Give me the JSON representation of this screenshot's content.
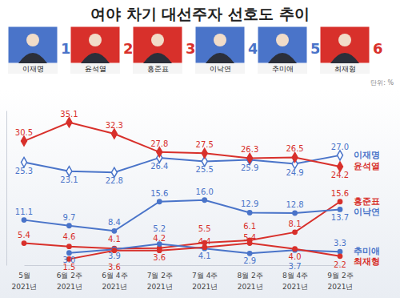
{
  "chart_data": {
    "type": "line",
    "title": "여야 차기 대선주자 선호도 추이",
    "unit_label": "단위: %",
    "categories": [
      "5월 2021년",
      "6월 2주 2021년",
      "6월 4주 2021년",
      "7월 2주 2021년",
      "7월 4주 2021년",
      "8월 2주 2021년",
      "8월 4주 2021년",
      "9월 2주 2021년"
    ],
    "series": [
      {
        "name": "이재명",
        "number": 1,
        "color": "#4a74c9",
        "marker": "diamond-open",
        "values": [
          25.3,
          23.1,
          22.8,
          26.4,
          25.5,
          25.9,
          24.9,
          27.0
        ],
        "value_labels": [
          "25.3",
          "23.1",
          "22.8",
          "26.4",
          "25.5",
          "25.9",
          "24.9",
          "27.0"
        ]
      },
      {
        "name": "윤석열",
        "number": 2,
        "color": "#d8302b",
        "marker": "diamond",
        "values": [
          30.5,
          35.1,
          32.3,
          27.8,
          27.5,
          26.3,
          26.5,
          24.2
        ],
        "value_labels": [
          "30.5",
          "35.1",
          "32.3",
          "27.8",
          "27.5",
          "26.3",
          "26.5",
          "24.2"
        ]
      },
      {
        "name": "홍준표",
        "number": 3,
        "color": "#d8302b",
        "marker": "circle",
        "values": [
          5.4,
          4.6,
          4.1,
          4.2,
          5.5,
          6.1,
          8.1,
          15.6
        ],
        "value_labels": [
          "5.4",
          "4.6",
          "4.1",
          "4.2",
          "5.5",
          "6.1",
          "8.1",
          "15.6"
        ]
      },
      {
        "name": "이낙연",
        "number": 4,
        "color": "#4a74c9",
        "marker": "circle",
        "values": [
          11.1,
          9.7,
          8.4,
          15.6,
          16.0,
          12.9,
          12.8,
          13.7
        ],
        "value_labels": [
          "11.1",
          "9.7",
          "8.4",
          "15.6",
          "16.0",
          "12.9",
          "12.8",
          "13.7"
        ]
      },
      {
        "name": "추미애",
        "number": 5,
        "color": "#4a74c9",
        "marker": "circle",
        "values": [
          null,
          3.0,
          3.9,
          5.2,
          4.1,
          2.9,
          3.7,
          3.3
        ],
        "value_labels": [
          null,
          "3.0",
          "3.9",
          "5.2",
          "4.1",
          "2.9",
          "3.7",
          "3.3"
        ]
      },
      {
        "name": "최재형",
        "number": 6,
        "color": "#d8302b",
        "marker": "circle",
        "values": [
          null,
          1.5,
          3.6,
          3.6,
          4.4,
          5.4,
          4.0,
          2.2
        ],
        "value_labels": [
          null,
          "1.5",
          "3.6",
          "3.6",
          "4.4",
          "5.4",
          "4.0",
          "2.2"
        ]
      }
    ],
    "ylim": [
      0,
      38
    ],
    "tick_labels": "x",
    "data_labels": true,
    "legend": "right"
  }
}
